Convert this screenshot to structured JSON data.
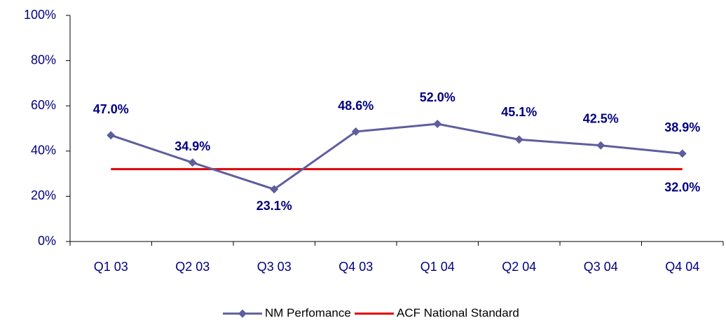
{
  "chart_data": {
    "type": "line",
    "categories": [
      "Q1 03",
      "Q2 03",
      "Q3 03",
      "Q4 03",
      "Q1 04",
      "Q2 04",
      "Q3 04",
      "Q4 04"
    ],
    "series": [
      {
        "name": "NM Perfomance",
        "color": "#5e5e9e",
        "values": [
          47.0,
          34.9,
          23.1,
          48.6,
          52.0,
          45.1,
          42.5,
          38.9
        ],
        "value_labels": [
          "47.0%",
          "34.9%",
          "23.1%",
          "48.6%",
          "52.0%",
          "45.1%",
          "42.5%",
          "38.9%"
        ]
      },
      {
        "name": "ACF National Standard",
        "color": "#e00000",
        "values": [
          32.0,
          32.0,
          32.0,
          32.0,
          32.0,
          32.0,
          32.0,
          32.0
        ],
        "value_labels": [
          null,
          null,
          null,
          null,
          null,
          null,
          null,
          "32.0%"
        ]
      }
    ],
    "ylim": [
      0,
      100
    ],
    "yticks": [
      {
        "value": 0,
        "label": "0%"
      },
      {
        "value": 20,
        "label": "20%"
      },
      {
        "value": 40,
        "label": "40%"
      },
      {
        "value": 60,
        "label": "60%"
      },
      {
        "value": 80,
        "label": "80%"
      },
      {
        "value": 100,
        "label": "100%"
      }
    ],
    "legend": "bottom"
  }
}
